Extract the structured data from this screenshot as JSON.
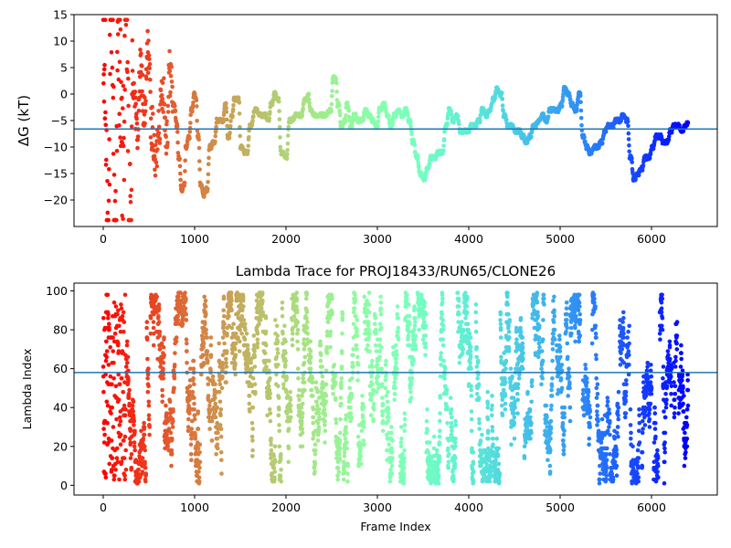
{
  "chart_data": [
    {
      "type": "scatter",
      "title": "",
      "xlabel": "",
      "ylabel": "ΔG (kT)",
      "xlim": [
        -320,
        6720
      ],
      "ylim": [
        -25,
        15
      ],
      "xticks": [
        0,
        1000,
        2000,
        3000,
        4000,
        5000,
        6000
      ],
      "yticks": [
        15,
        10,
        5,
        0,
        -5,
        -10,
        -15,
        -20
      ],
      "xtick_labels": [
        "0",
        "1000",
        "2000",
        "3000",
        "4000",
        "5000",
        "6000"
      ],
      "ytick_labels": [
        "15",
        "10",
        "5",
        "0",
        "−5",
        "−10",
        "−15",
        "−20"
      ],
      "hline": -6.6,
      "hline_color": "#1f77b4",
      "colormap": "rainbow (red at frame 0 → violet at last frame)",
      "x_max": 6400,
      "grid": false,
      "legend": "none",
      "trace_keypoints": [
        [
          0,
          2
        ],
        [
          40,
          -20
        ],
        [
          80,
          13
        ],
        [
          120,
          -22
        ],
        [
          160,
          8
        ],
        [
          200,
          -12
        ],
        [
          240,
          13
        ],
        [
          280,
          -24
        ],
        [
          320,
          2
        ],
        [
          360,
          -7
        ],
        [
          400,
          4
        ],
        [
          440,
          -4
        ],
        [
          480,
          8
        ],
        [
          520,
          -6
        ],
        [
          560,
          -13
        ],
        [
          600,
          -5
        ],
        [
          640,
          1
        ],
        [
          680,
          -7
        ],
        [
          720,
          4
        ],
        [
          760,
          -2
        ],
        [
          800,
          -6
        ],
        [
          820,
          -12
        ],
        [
          850,
          -18
        ],
        [
          880,
          -17
        ],
        [
          900,
          -10
        ],
        [
          930,
          -8
        ],
        [
          960,
          -3
        ],
        [
          990,
          0
        ],
        [
          1010,
          -1
        ],
        [
          1030,
          -8
        ],
        [
          1060,
          -17
        ],
        [
          1090,
          -19
        ],
        [
          1120,
          -18
        ],
        [
          1160,
          -10
        ],
        [
          1200,
          -9
        ],
        [
          1240,
          -5
        ],
        [
          1300,
          -5
        ],
        [
          1330,
          -2
        ],
        [
          1360,
          -8
        ],
        [
          1400,
          -4
        ],
        [
          1430,
          -1
        ],
        [
          1470,
          -1
        ],
        [
          1500,
          -10
        ],
        [
          1540,
          -11
        ],
        [
          1560,
          -11
        ],
        [
          1600,
          -6
        ],
        [
          1650,
          -3
        ],
        [
          1700,
          -4
        ],
        [
          1750,
          -4
        ],
        [
          1800,
          -5
        ],
        [
          1830,
          -2
        ],
        [
          1870,
          0
        ],
        [
          1900,
          -1
        ],
        [
          1940,
          -11
        ],
        [
          1990,
          -12
        ],
        [
          2030,
          -5
        ],
        [
          2100,
          -4
        ],
        [
          2150,
          -4
        ],
        [
          2200,
          -1
        ],
        [
          2240,
          0
        ],
        [
          2260,
          -3
        ],
        [
          2300,
          -4
        ],
        [
          2400,
          -4
        ],
        [
          2480,
          -3
        ],
        [
          2510,
          3
        ],
        [
          2540,
          3
        ],
        [
          2560,
          -2
        ],
        [
          2600,
          -6
        ],
        [
          2640,
          -5
        ],
        [
          2660,
          -2
        ],
        [
          2700,
          -6
        ],
        [
          2740,
          -4
        ],
        [
          2780,
          -5
        ],
        [
          2820,
          -5
        ],
        [
          2860,
          -3
        ],
        [
          2900,
          -4
        ],
        [
          2940,
          -5
        ],
        [
          2980,
          -6
        ],
        [
          3020,
          -3
        ],
        [
          3060,
          -2
        ],
        [
          3100,
          -4
        ],
        [
          3140,
          -6
        ],
        [
          3180,
          -4
        ],
        [
          3220,
          -3
        ],
        [
          3260,
          -4
        ],
        [
          3300,
          -3
        ],
        [
          3340,
          -5
        ],
        [
          3380,
          -9
        ],
        [
          3420,
          -12
        ],
        [
          3460,
          -15
        ],
        [
          3500,
          -16
        ],
        [
          3540,
          -14
        ],
        [
          3580,
          -12
        ],
        [
          3620,
          -12
        ],
        [
          3660,
          -11
        ],
        [
          3700,
          -11
        ],
        [
          3740,
          -6
        ],
        [
          3780,
          -3
        ],
        [
          3820,
          -5
        ],
        [
          3860,
          -4
        ],
        [
          3900,
          -7
        ],
        [
          3940,
          -7
        ],
        [
          3980,
          -7
        ],
        [
          4020,
          -6
        ],
        [
          4060,
          -6
        ],
        [
          4100,
          -5
        ],
        [
          4140,
          -3
        ],
        [
          4180,
          -4
        ],
        [
          4220,
          -3
        ],
        [
          4260,
          -1
        ],
        [
          4300,
          1
        ],
        [
          4340,
          0
        ],
        [
          4380,
          -4
        ],
        [
          4420,
          -6
        ],
        [
          4460,
          -6
        ],
        [
          4500,
          -7
        ],
        [
          4540,
          -7
        ],
        [
          4580,
          -8
        ],
        [
          4620,
          -9
        ],
        [
          4660,
          -8
        ],
        [
          4700,
          -6
        ],
        [
          4760,
          -5
        ],
        [
          4800,
          -4
        ],
        [
          4840,
          -5
        ],
        [
          4880,
          -3
        ],
        [
          4920,
          -3
        ],
        [
          4960,
          -3
        ],
        [
          5000,
          -2
        ],
        [
          5040,
          1
        ],
        [
          5080,
          0
        ],
        [
          5120,
          -2
        ],
        [
          5160,
          -3
        ],
        [
          5200,
          0
        ],
        [
          5240,
          -8
        ],
        [
          5280,
          -10
        ],
        [
          5320,
          -11
        ],
        [
          5360,
          -10
        ],
        [
          5400,
          -10
        ],
        [
          5440,
          -9
        ],
        [
          5480,
          -7
        ],
        [
          5520,
          -6
        ],
        [
          5560,
          -6
        ],
        [
          5600,
          -5
        ],
        [
          5640,
          -5
        ],
        [
          5680,
          -4
        ],
        [
          5720,
          -5
        ],
        [
          5760,
          -12
        ],
        [
          5800,
          -16
        ],
        [
          5840,
          -15
        ],
        [
          5880,
          -14
        ],
        [
          5920,
          -12
        ],
        [
          5960,
          -12
        ],
        [
          6000,
          -10
        ],
        [
          6040,
          -8
        ],
        [
          6080,
          -8
        ],
        [
          6120,
          -9
        ],
        [
          6160,
          -9
        ],
        [
          6200,
          -7
        ],
        [
          6240,
          -6
        ],
        [
          6280,
          -6
        ],
        [
          6320,
          -7
        ],
        [
          6360,
          -6
        ],
        [
          6400,
          -5
        ]
      ]
    },
    {
      "type": "scatter",
      "title": "Lambda Trace for PROJ18433/RUN65/CLONE26",
      "xlabel": "Frame Index",
      "ylabel": "Lambda Index",
      "xlim": [
        -320,
        6720
      ],
      "ylim": [
        -5,
        104
      ],
      "xticks": [
        0,
        1000,
        2000,
        3000,
        4000,
        5000,
        6000
      ],
      "yticks": [
        0,
        20,
        40,
        60,
        80,
        100
      ],
      "xtick_labels": [
        "0",
        "1000",
        "2000",
        "3000",
        "4000",
        "5000",
        "6000"
      ],
      "ytick_labels": [
        "0",
        "20",
        "40",
        "60",
        "80",
        "100"
      ],
      "hline": 58,
      "hline_color": "#1f77b4",
      "colormap": "rainbow (red at frame 0 → violet at last frame)",
      "x_max": 6400,
      "value_range": [
        1,
        99
      ],
      "grid": false,
      "legend": "none"
    }
  ]
}
